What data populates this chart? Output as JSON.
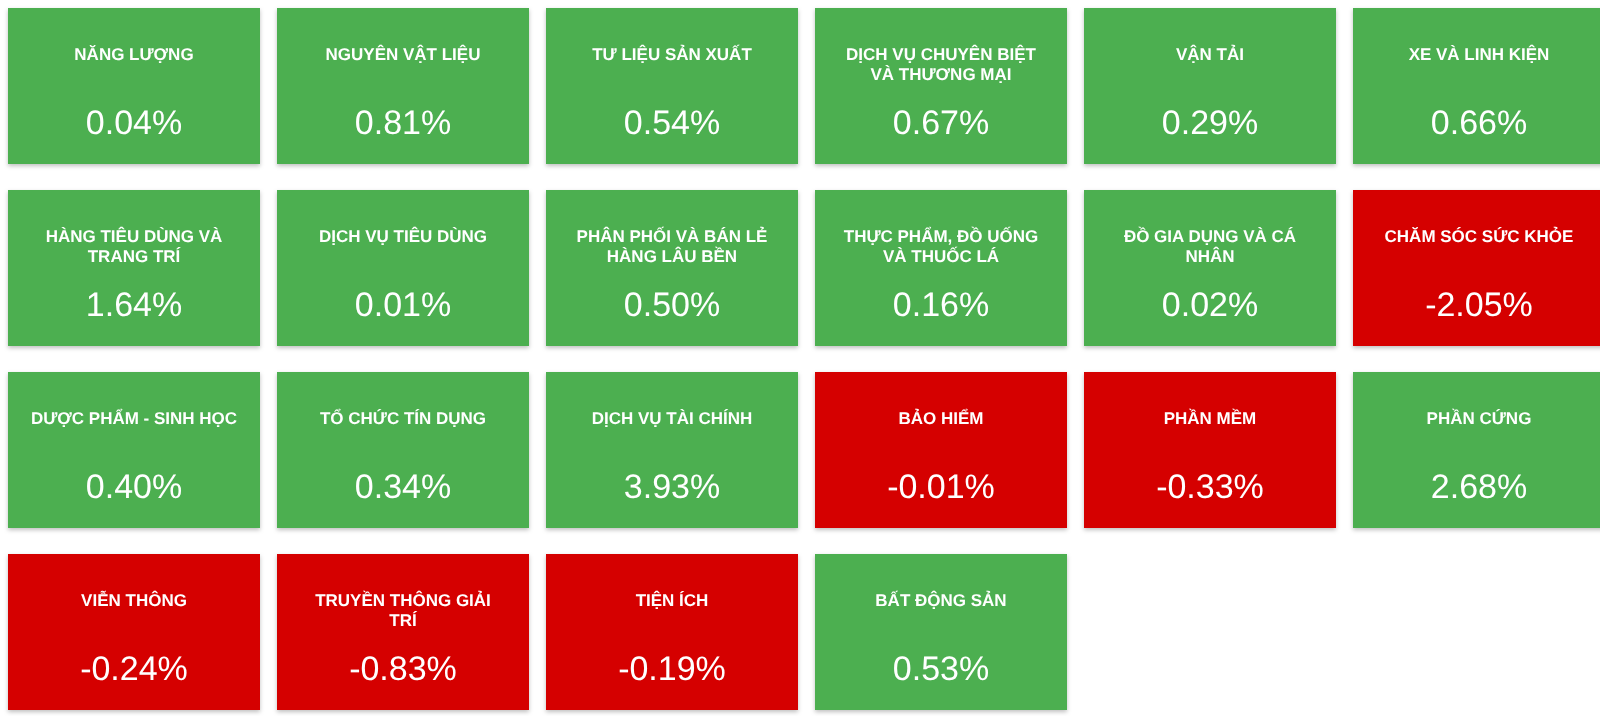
{
  "chart_data": {
    "type": "other",
    "categories": [
      "NĂNG LƯỢNG",
      "NGUYÊN VẬT LIỆU",
      "TƯ LIỆU SẢN XUẤT",
      "DỊCH VỤ CHUYÊN BIỆT VÀ THƯƠNG MẠI",
      "VẬN TẢI",
      "XE VÀ LINH KIỆN",
      "HÀNG TIÊU DÙNG VÀ TRANG TRÍ",
      "DỊCH VỤ TIÊU DÙNG",
      "PHÂN PHỐI VÀ BÁN LẺ HÀNG LÂU BỀN",
      "THỰC PHẨM, ĐỒ UỐNG VÀ THUỐC LÁ",
      "ĐỒ GIA DỤNG VÀ CÁ NHÂN",
      "CHĂM SÓC SỨC KHỎE",
      "DƯỢC PHẨM - SINH HỌC",
      "TỔ CHỨC TÍN DỤNG",
      "DỊCH VỤ TÀI CHÍNH",
      "BẢO HIỂM",
      "PHẦN MỀM",
      "PHẦN CỨNG",
      "VIỄN THÔNG",
      "TRUYỀN THÔNG GIẢI TRÍ",
      "TIỆN ÍCH",
      "BẤT ĐỘNG SẢN"
    ],
    "values": [
      0.04,
      0.81,
      0.54,
      0.67,
      0.29,
      0.66,
      1.64,
      0.01,
      0.5,
      0.16,
      0.02,
      -2.05,
      0.4,
      0.34,
      3.93,
      -0.01,
      -0.33,
      2.68,
      -0.24,
      -0.83,
      -0.19,
      0.53
    ],
    "value_labels": [
      "0.04%",
      "0.81%",
      "0.54%",
      "0.67%",
      "0.29%",
      "0.66%",
      "1.64%",
      "0.01%",
      "0.50%",
      "0.16%",
      "0.02%",
      "-2.05%",
      "0.40%",
      "0.34%",
      "3.93%",
      "-0.01%",
      "-0.33%",
      "2.68%",
      "-0.24%",
      "-0.83%",
      "-0.19%",
      "0.53%"
    ],
    "colors": [
      "#4caf50",
      "#4caf50",
      "#4caf50",
      "#4caf50",
      "#4caf50",
      "#4caf50",
      "#4caf50",
      "#4caf50",
      "#4caf50",
      "#4caf50",
      "#4caf50",
      "#d50000",
      "#4caf50",
      "#4caf50",
      "#4caf50",
      "#d50000",
      "#d50000",
      "#4caf50",
      "#d50000",
      "#d50000",
      "#d50000",
      "#4caf50"
    ]
  }
}
